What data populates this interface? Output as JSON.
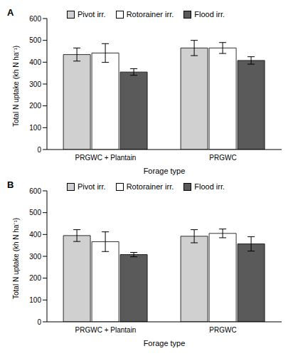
{
  "chart_data": [
    {
      "type": "bar",
      "title": "A",
      "x_label": "Forage type",
      "y_label": "Total N uptake (kh N ha⁻¹)",
      "categories": [
        "PRGWC + Plantain",
        "PRGWC"
      ],
      "series": [
        {
          "name": "Pivot irr.",
          "color": "#d0d0d0",
          "values": [
            435,
            465
          ],
          "errors": [
            30,
            35
          ]
        },
        {
          "name": "Rotorainer irr.",
          "color": "#ffffff",
          "values": [
            442,
            465
          ],
          "errors": [
            43,
            25
          ]
        },
        {
          "name": "Flood irr.",
          "color": "#5a5a5a",
          "values": [
            355,
            408
          ],
          "errors": [
            15,
            17
          ]
        }
      ],
      "ylim": [
        0,
        600
      ],
      "yticks": [
        0,
        100,
        200,
        300,
        400,
        500,
        600
      ],
      "grid": false,
      "legend": "top"
    },
    {
      "type": "bar",
      "title": "B",
      "x_label": "Forage type",
      "y_label": "Total N uptake (kh N ha⁻¹)",
      "categories": [
        "PRGWC + Plantain",
        "PRGWC"
      ],
      "series": [
        {
          "name": "Pivot irr.",
          "color": "#d0d0d0",
          "values": [
            395,
            392
          ],
          "errors": [
            27,
            30
          ]
        },
        {
          "name": "Rotorainer irr.",
          "color": "#ffffff",
          "values": [
            367,
            405
          ],
          "errors": [
            45,
            20
          ]
        },
        {
          "name": "Flood irr.",
          "color": "#5a5a5a",
          "values": [
            308,
            357
          ],
          "errors": [
            10,
            33
          ]
        }
      ],
      "ylim": [
        0,
        600
      ],
      "yticks": [
        0,
        100,
        200,
        300,
        400,
        500,
        600
      ],
      "grid": false,
      "legend": "top"
    }
  ]
}
